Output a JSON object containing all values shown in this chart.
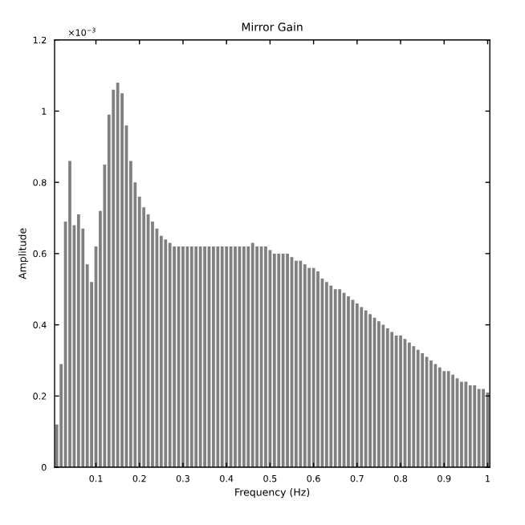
{
  "chart_data": {
    "type": "bar",
    "title": "Mirror Gain",
    "xlabel": "Frequency (Hz)",
    "ylabel": "Amplitude",
    "annotations": [
      "×10$^{−3}$"
    ],
    "x": [
      0.01,
      0.02,
      0.03,
      0.04,
      0.05,
      0.06,
      0.07,
      0.08,
      0.09,
      0.1,
      0.11,
      0.12,
      0.13,
      0.14,
      0.15,
      0.16,
      0.17,
      0.18,
      0.19,
      0.2,
      0.21,
      0.22,
      0.23,
      0.24,
      0.25,
      0.26,
      0.27,
      0.28,
      0.29,
      0.3,
      0.31,
      0.32,
      0.33,
      0.34,
      0.35,
      0.36,
      0.37,
      0.38,
      0.39,
      0.4,
      0.41,
      0.42,
      0.43,
      0.44,
      0.45,
      0.46,
      0.47,
      0.48,
      0.49,
      0.5,
      0.51,
      0.52,
      0.53,
      0.54,
      0.55,
      0.56,
      0.57,
      0.58,
      0.59,
      0.6,
      0.61,
      0.62,
      0.63,
      0.64,
      0.65,
      0.66,
      0.67,
      0.68,
      0.69,
      0.7,
      0.71,
      0.72,
      0.73,
      0.74,
      0.75,
      0.76,
      0.77,
      0.78,
      0.79,
      0.8,
      0.81,
      0.82,
      0.83,
      0.84,
      0.85,
      0.86,
      0.87,
      0.88,
      0.89,
      0.9,
      0.91,
      0.92,
      0.93,
      0.94,
      0.95,
      0.96,
      0.97,
      0.98,
      0.99,
      1.0
    ],
    "values": [
      0.12,
      0.29,
      0.69,
      0.86,
      0.68,
      0.71,
      0.67,
      0.57,
      0.52,
      0.62,
      0.72,
      0.85,
      0.99,
      1.06,
      1.08,
      1.05,
      0.96,
      0.86,
      0.8,
      0.76,
      0.73,
      0.71,
      0.69,
      0.67,
      0.65,
      0.64,
      0.63,
      0.62,
      0.62,
      0.62,
      0.62,
      0.62,
      0.62,
      0.62,
      0.62,
      0.62,
      0.62,
      0.62,
      0.62,
      0.62,
      0.62,
      0.62,
      0.62,
      0.62,
      0.62,
      0.63,
      0.62,
      0.62,
      0.62,
      0.61,
      0.6,
      0.6,
      0.6,
      0.6,
      0.59,
      0.58,
      0.58,
      0.57,
      0.56,
      0.56,
      0.55,
      0.53,
      0.52,
      0.51,
      0.5,
      0.5,
      0.49,
      0.48,
      0.47,
      0.46,
      0.45,
      0.44,
      0.43,
      0.42,
      0.41,
      0.4,
      0.39,
      0.38,
      0.37,
      0.37,
      0.36,
      0.35,
      0.34,
      0.33,
      0.32,
      0.31,
      0.3,
      0.29,
      0.28,
      0.27,
      0.27,
      0.26,
      0.25,
      0.24,
      0.24,
      0.23,
      0.23,
      0.22,
      0.22,
      0.21
    ],
    "color": "#808080",
    "xlim": [
      0.005,
      1.005
    ],
    "xticks": [
      0.1,
      0.2,
      0.3,
      0.4,
      0.5,
      0.6,
      0.7,
      0.8,
      0.9,
      1
    ],
    "ylim": [
      0,
      1.2
    ],
    "yticks": [
      0,
      0.2,
      0.4,
      0.6,
      0.8,
      1,
      1.2
    ],
    "grid": false,
    "legend": false
  }
}
